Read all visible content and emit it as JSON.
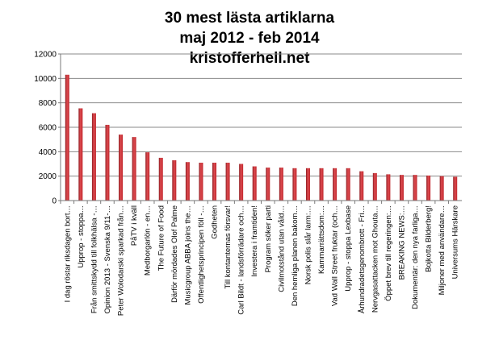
{
  "chart_data": {
    "type": "bar",
    "title": [
      "30 mest lästa artiklarna",
      "maj 2012 - feb 2014",
      "kristofferhell.net"
    ],
    "categories": [
      "I dag röstar riksdagen bort…",
      "Upprop - stoppa…",
      "Från smittskydd till folkhälsa -…",
      "Opinion 2013 - Svenska 9/11-…",
      "Peter Wolodarski sparkad från…",
      "PåTV i kväll",
      "Medborgarlön - en…",
      "The Future of Food",
      "Därför mördades Olof Palme",
      "Musicgroup ABBA joins the…",
      "Offentlighetsprincipen föll -…",
      "Godheten",
      "Till kontanternas försvar!",
      "Carl Bildt - landsförrädare och…",
      "Investera i framtiden!",
      "Program söker parti",
      "Civilmotstånd utan våld…",
      "Den hemliga planen bakom…",
      "Norsk polis slår larm:…",
      "Kammarrättsdom:…",
      "Vad Wall Street fruktar (och…",
      "Upprop - stoppa Lexbase",
      "Århundradetsgenombrott - Fri…",
      "Nervgasattacken mot Ghouta…",
      "Öppet brev till regeringen:…",
      "BREAKING NEWS:…",
      "Dokumentär: den nya farliga…",
      "Bojkotta Bilderberg!",
      "Miljoner med användare…",
      "Universums Härskare"
    ],
    "values": [
      10300,
      7550,
      7150,
      6200,
      5400,
      5200,
      3950,
      3500,
      3300,
      3150,
      3100,
      3100,
      3100,
      3000,
      2800,
      2700,
      2700,
      2650,
      2650,
      2650,
      2650,
      2650,
      2400,
      2250,
      2150,
      2100,
      2100,
      2050,
      2000,
      1950
    ],
    "ylim": [
      0,
      12000
    ],
    "yticks": [
      0,
      2000,
      4000,
      6000,
      8000,
      10000,
      12000
    ],
    "grid": true,
    "legend": "none",
    "colors": {
      "bar": "#c0262c",
      "bar_dark": "#8e1a1f",
      "bar_light": "#dd4b50",
      "grid": "#8a8a8a",
      "axis": "#7a7a7a"
    }
  }
}
